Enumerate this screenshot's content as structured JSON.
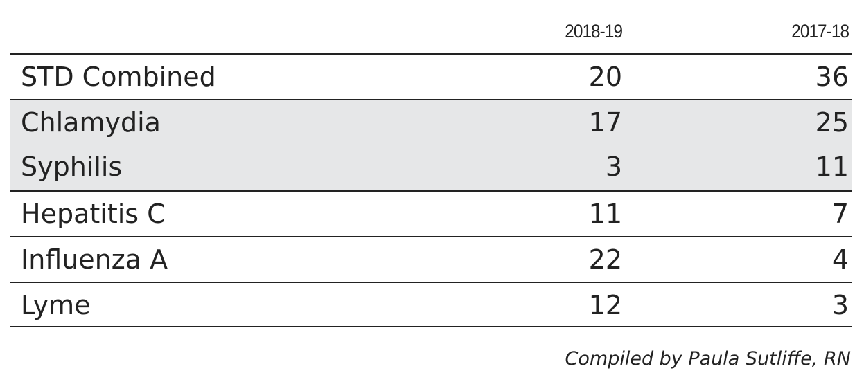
{
  "header": {
    "columns": [
      "2018-19",
      "2017-18"
    ]
  },
  "table": {
    "rows": [
      [
        "STD Combined",
        20,
        36
      ],
      [
        "Chlamydia",
        17,
        25
      ],
      [
        "Syphilis",
        3,
        11
      ],
      [
        "Hepatitis C",
        11,
        7
      ],
      [
        "Influenza A",
        22,
        4
      ],
      [
        "Lyme",
        12,
        3
      ]
    ]
  },
  "footer": "Compiled by Paula Sutliffe, RN"
}
